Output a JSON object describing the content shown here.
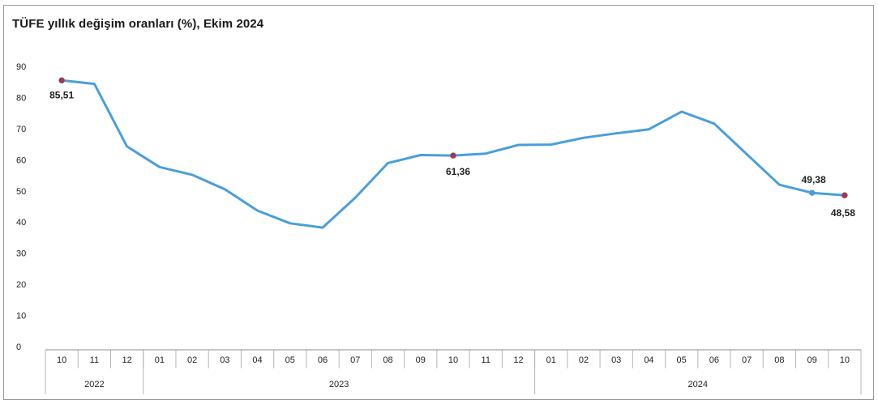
{
  "chart_data": {
    "type": "line",
    "title": "TÜFE yıllık değişim oranları (%), Ekim 2024",
    "xlabel": "",
    "ylabel": "",
    "ylim": [
      0,
      90
    ],
    "yticks": [
      0,
      10,
      20,
      30,
      40,
      50,
      60,
      70,
      80,
      90
    ],
    "grid": false,
    "categories": [
      "10",
      "11",
      "12",
      "01",
      "02",
      "03",
      "04",
      "05",
      "06",
      "07",
      "08",
      "09",
      "10",
      "11",
      "12",
      "01",
      "02",
      "03",
      "04",
      "05",
      "06",
      "07",
      "08",
      "09",
      "10"
    ],
    "year_groups": [
      {
        "label": "2022",
        "start": 0,
        "end": 2
      },
      {
        "label": "2023",
        "start": 3,
        "end": 14
      },
      {
        "label": "2024",
        "start": 15,
        "end": 24
      }
    ],
    "series": [
      {
        "color": "#4a9fd8",
        "marker_color": "#9b3a5a",
        "values": [
          85.51,
          84.39,
          64.27,
          57.68,
          55.18,
          50.51,
          43.68,
          39.59,
          38.21,
          47.83,
          58.94,
          61.53,
          61.36,
          61.98,
          64.77,
          64.86,
          67.07,
          68.5,
          69.8,
          75.45,
          71.6,
          61.78,
          51.97,
          49.38,
          48.58
        ]
      }
    ],
    "data_labels": [
      {
        "index": 0,
        "text": "85,51"
      },
      {
        "index": 12,
        "text": "61,36"
      },
      {
        "index": 23,
        "text": "49,38"
      },
      {
        "index": 24,
        "text": "48,58"
      }
    ]
  }
}
